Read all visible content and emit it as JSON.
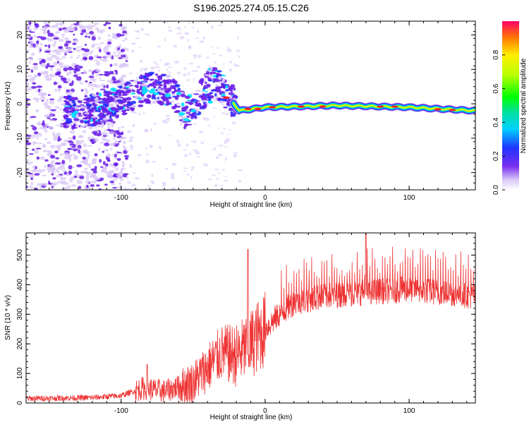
{
  "title": "S196.2025.274.05.15.C26",
  "colors": {
    "snr_line": "#ee3333",
    "axis": "#000000",
    "spec_purple": "#6a1ee8",
    "spec_light": "#d7c4f7"
  },
  "chart_data": [
    {
      "type": "heatmap",
      "xlabel": "Height of straight line (km)",
      "ylabel": "Frequency (Hz)",
      "xlim": [
        -166,
        146
      ],
      "ylim": [
        -25,
        24
      ],
      "xticks": [
        -100,
        0,
        100
      ],
      "yticks": [
        -20,
        -10,
        0,
        10,
        20
      ],
      "colorbar": {
        "label": "Normalized spectral amplitude",
        "range": [
          0,
          1
        ],
        "ticks": [
          0.0,
          0.2,
          0.4,
          0.6,
          0.8
        ]
      },
      "ridge": {
        "description_points": [
          {
            "x": -135,
            "y": -3
          },
          {
            "x": -110,
            "y": -1
          },
          {
            "x": -95,
            "y": 2
          },
          {
            "x": -80,
            "y": 5
          },
          {
            "x": -65,
            "y": 4
          },
          {
            "x": -55,
            "y": -3
          },
          {
            "x": -45,
            "y": 2
          },
          {
            "x": -35,
            "y": 7
          },
          {
            "x": -25,
            "y": 2
          },
          {
            "x": -18,
            "y": -2
          },
          {
            "x": 0,
            "y": -1
          },
          {
            "x": 50,
            "y": -0.5
          },
          {
            "x": 100,
            "y": -1
          },
          {
            "x": 145,
            "y": -2
          }
        ]
      }
    },
    {
      "type": "line",
      "xlabel": "Height of straight line (km)",
      "ylabel": "SNR (10 * v/v)",
      "xlim": [
        -166,
        146
      ],
      "ylim": [
        0,
        575
      ],
      "xticks": [
        -100,
        0,
        100
      ],
      "yticks": [
        0,
        100,
        200,
        300,
        400,
        500
      ],
      "series": [
        {
          "name": "SNR",
          "trend": [
            {
              "x": -166,
              "y": 15
            },
            {
              "x": -120,
              "y": 18
            },
            {
              "x": -100,
              "y": 25
            },
            {
              "x": -85,
              "y": 50
            },
            {
              "x": -70,
              "y": 40
            },
            {
              "x": -50,
              "y": 70
            },
            {
              "x": -40,
              "y": 120
            },
            {
              "x": -30,
              "y": 170
            },
            {
              "x": -20,
              "y": 160
            },
            {
              "x": -10,
              "y": 200
            },
            {
              "x": 0,
              "y": 250
            },
            {
              "x": 10,
              "y": 300
            },
            {
              "x": 20,
              "y": 340
            },
            {
              "x": 40,
              "y": 360
            },
            {
              "x": 70,
              "y": 375
            },
            {
              "x": 100,
              "y": 385
            },
            {
              "x": 130,
              "y": 370
            },
            {
              "x": 146,
              "y": 360
            }
          ],
          "peaks": [
            {
              "x": -82,
              "y": 130
            },
            {
              "x": -12,
              "y": 520
            },
            {
              "x": 70,
              "y": 575
            }
          ]
        }
      ]
    }
  ]
}
